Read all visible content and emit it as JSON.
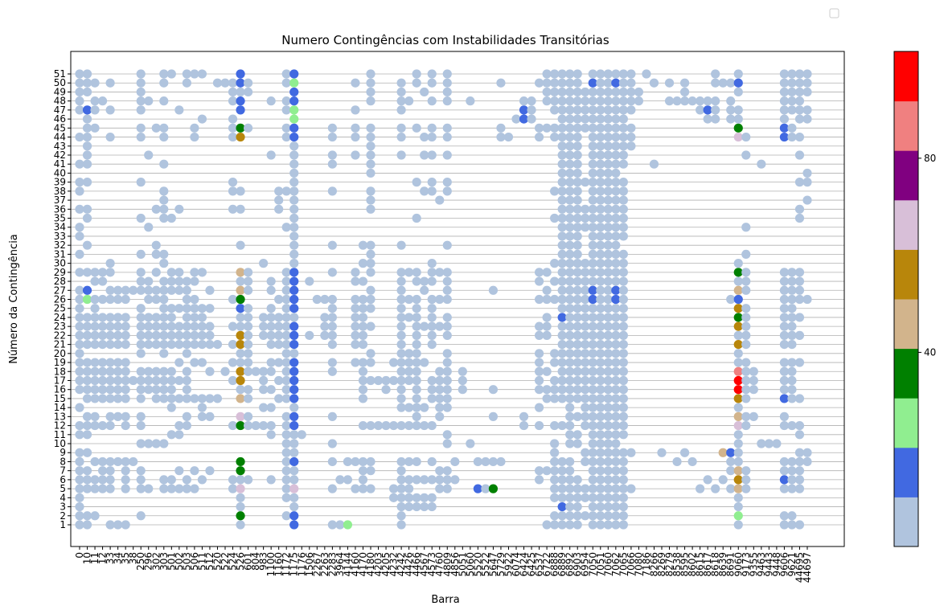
{
  "chart_data": {
    "type": "scatter",
    "title": "Numero Contingências com Instabilidades Transitórias",
    "xlabel": "Barra",
    "ylabel": "Número da Contingência",
    "x_tick_labels": [
      "0",
      "10",
      "11",
      "12",
      "33",
      "34",
      "35",
      "38",
      "250",
      "296",
      "302",
      "303",
      "501",
      "502",
      "503",
      "506",
      "511",
      "512",
      "520",
      "522",
      "524",
      "526",
      "601",
      "804",
      "983",
      "1100",
      "1160",
      "1172",
      "1175",
      "1176",
      "1506",
      "2267",
      "2263",
      "2283",
      "3964",
      "4144",
      "4160",
      "4170",
      "4180",
      "4203",
      "4205",
      "4232",
      "4242",
      "4426",
      "4466",
      "4567",
      "4573",
      "4760",
      "4809",
      "4856",
      "5051",
      "5060",
      "5520",
      "5522",
      "5647",
      "5729",
      "5922",
      "6074",
      "6424",
      "6425",
      "6537",
      "6722",
      "6888",
      "6889",
      "6892",
      "6903",
      "6954",
      "7050",
      "7051",
      "7060",
      "7062",
      "7065",
      "7066",
      "7080",
      "7186",
      "8266",
      "8269",
      "8279",
      "8538",
      "8595",
      "8602",
      "8615",
      "8617",
      "8618",
      "8639",
      "8691",
      "9060",
      "9173",
      "9355",
      "9463",
      "9443",
      "9448",
      "9606",
      "9621",
      "44695",
      "44697"
    ],
    "y_ticks": [
      1,
      2,
      3,
      4,
      5,
      6,
      7,
      8,
      9,
      10,
      11,
      12,
      13,
      14,
      15,
      16,
      17,
      18,
      19,
      20,
      21,
      22,
      23,
      24,
      25,
      26,
      27,
      28,
      29,
      30,
      31,
      32,
      33,
      34,
      35,
      36,
      37,
      38,
      39,
      40,
      41,
      42,
      43,
      44,
      45,
      46,
      47,
      48,
      49,
      50,
      51
    ],
    "colorbar": {
      "ticks": [
        40,
        80
      ],
      "colors": [
        "#b0c4de",
        "#4169e1",
        "#90ee90",
        "#008000",
        "#d2b48c",
        "#b8860b",
        "#d8bfd8",
        "#800080",
        "#f08080",
        "#ff0000"
      ]
    },
    "grid": "horizontal",
    "legend": "top-right (empty)",
    "default_point_color": "#b0c4de",
    "highlighted_points": [
      {
        "x": "10",
        "y": 47,
        "color": "#4169e1"
      },
      {
        "x": "10",
        "y": 27,
        "color": "#4169e1"
      },
      {
        "x": "10",
        "y": 26,
        "color": "#90ee90"
      },
      {
        "x": "526",
        "y": 51,
        "color": "#4169e1"
      },
      {
        "x": "526",
        "y": 50,
        "color": "#4169e1"
      },
      {
        "x": "526",
        "y": 48,
        "color": "#4169e1"
      },
      {
        "x": "526",
        "y": 47,
        "color": "#4169e1"
      },
      {
        "x": "526",
        "y": 45,
        "color": "#008000"
      },
      {
        "x": "526",
        "y": 44,
        "color": "#b8860b"
      },
      {
        "x": "526",
        "y": 29,
        "color": "#d2b48c"
      },
      {
        "x": "526",
        "y": 27,
        "color": "#d2b48c"
      },
      {
        "x": "526",
        "y": 26,
        "color": "#008000"
      },
      {
        "x": "526",
        "y": 25,
        "color": "#4169e1"
      },
      {
        "x": "526",
        "y": 22,
        "color": "#b8860b"
      },
      {
        "x": "526",
        "y": 21,
        "color": "#b8860b"
      },
      {
        "x": "526",
        "y": 18,
        "color": "#b8860b"
      },
      {
        "x": "526",
        "y": 17,
        "color": "#b8860b"
      },
      {
        "x": "526",
        "y": 15,
        "color": "#d2b48c"
      },
      {
        "x": "526",
        "y": 13,
        "color": "#d8bfd8"
      },
      {
        "x": "526",
        "y": 12,
        "color": "#008000"
      },
      {
        "x": "526",
        "y": 8,
        "color": "#008000"
      },
      {
        "x": "526",
        "y": 7,
        "color": "#008000"
      },
      {
        "x": "526",
        "y": 5,
        "color": "#d8bfd8"
      },
      {
        "x": "526",
        "y": 2,
        "color": "#008000"
      },
      {
        "x": "1175",
        "y": 51,
        "color": "#4169e1"
      },
      {
        "x": "1175",
        "y": 50,
        "color": "#90ee90"
      },
      {
        "x": "1175",
        "y": 49,
        "color": "#4169e1"
      },
      {
        "x": "1175",
        "y": 48,
        "color": "#4169e1"
      },
      {
        "x": "1175",
        "y": 47,
        "color": "#90ee90"
      },
      {
        "x": "1175",
        "y": 46,
        "color": "#90ee90"
      },
      {
        "x": "1175",
        "y": 45,
        "color": "#4169e1"
      },
      {
        "x": "1175",
        "y": 44,
        "color": "#4169e1"
      },
      {
        "x": "1175",
        "y": 29,
        "color": "#4169e1"
      },
      {
        "x": "1175",
        "y": 28,
        "color": "#4169e1"
      },
      {
        "x": "1175",
        "y": 27,
        "color": "#4169e1"
      },
      {
        "x": "1175",
        "y": 26,
        "color": "#4169e1"
      },
      {
        "x": "1175",
        "y": 25,
        "color": "#4169e1"
      },
      {
        "x": "1175",
        "y": 23,
        "color": "#4169e1"
      },
      {
        "x": "1175",
        "y": 22,
        "color": "#4169e1"
      },
      {
        "x": "1175",
        "y": 21,
        "color": "#4169e1"
      },
      {
        "x": "1175",
        "y": 19,
        "color": "#4169e1"
      },
      {
        "x": "1175",
        "y": 18,
        "color": "#4169e1"
      },
      {
        "x": "1175",
        "y": 17,
        "color": "#4169e1"
      },
      {
        "x": "1175",
        "y": 16,
        "color": "#4169e1"
      },
      {
        "x": "1175",
        "y": 15,
        "color": "#4169e1"
      },
      {
        "x": "1175",
        "y": 13,
        "color": "#4169e1"
      },
      {
        "x": "1175",
        "y": 12,
        "color": "#4169e1"
      },
      {
        "x": "1175",
        "y": 8,
        "color": "#4169e1"
      },
      {
        "x": "1175",
        "y": 5,
        "color": "#d8bfd8"
      },
      {
        "x": "1175",
        "y": 2,
        "color": "#4169e1"
      },
      {
        "x": "1175",
        "y": 1,
        "color": "#4169e1"
      },
      {
        "x": "4144",
        "y": 1,
        "color": "#90ee90"
      },
      {
        "x": "5520",
        "y": 5,
        "color": "#4169e1"
      },
      {
        "x": "5647",
        "y": 5,
        "color": "#008000"
      },
      {
        "x": "6424",
        "y": 47,
        "color": "#4169e1"
      },
      {
        "x": "6424",
        "y": 46,
        "color": "#4169e1"
      },
      {
        "x": "6889",
        "y": 24,
        "color": "#4169e1"
      },
      {
        "x": "6889",
        "y": 3,
        "color": "#4169e1"
      },
      {
        "x": "7050",
        "y": 50,
        "color": "#4169e1"
      },
      {
        "x": "7050",
        "y": 27,
        "color": "#4169e1"
      },
      {
        "x": "7050",
        "y": 26,
        "color": "#4169e1"
      },
      {
        "x": "7062",
        "y": 50,
        "color": "#4169e1"
      },
      {
        "x": "7062",
        "y": 27,
        "color": "#4169e1"
      },
      {
        "x": "7062",
        "y": 26,
        "color": "#4169e1"
      },
      {
        "x": "8617",
        "y": 47,
        "color": "#4169e1"
      },
      {
        "x": "8691",
        "y": 9,
        "color": "#4169e1"
      },
      {
        "x": "8639",
        "y": 9,
        "color": "#d2b48c"
      },
      {
        "x": "9060",
        "y": 50,
        "color": "#4169e1"
      },
      {
        "x": "9060",
        "y": 45,
        "color": "#008000"
      },
      {
        "x": "9060",
        "y": 44,
        "color": "#d8bfd8"
      },
      {
        "x": "9060",
        "y": 29,
        "color": "#008000"
      },
      {
        "x": "9060",
        "y": 27,
        "color": "#d2b48c"
      },
      {
        "x": "9060",
        "y": 26,
        "color": "#4169e1"
      },
      {
        "x": "9060",
        "y": 25,
        "color": "#b8860b"
      },
      {
        "x": "9060",
        "y": 24,
        "color": "#008000"
      },
      {
        "x": "9060",
        "y": 23,
        "color": "#b8860b"
      },
      {
        "x": "9060",
        "y": 21,
        "color": "#b8860b"
      },
      {
        "x": "9060",
        "y": 18,
        "color": "#f08080"
      },
      {
        "x": "9060",
        "y": 17,
        "color": "#ff0000"
      },
      {
        "x": "9060",
        "y": 16,
        "color": "#ff0000"
      },
      {
        "x": "9060",
        "y": 15,
        "color": "#b8860b"
      },
      {
        "x": "9060",
        "y": 13,
        "color": "#d2b48c"
      },
      {
        "x": "9060",
        "y": 12,
        "color": "#d8bfd8"
      },
      {
        "x": "9060",
        "y": 7,
        "color": "#d2b48c"
      },
      {
        "x": "9060",
        "y": 6,
        "color": "#b8860b"
      },
      {
        "x": "9060",
        "y": 5,
        "color": "#d2b48c"
      },
      {
        "x": "9060",
        "y": 2,
        "color": "#90ee90"
      },
      {
        "x": "9606",
        "y": 45,
        "color": "#4169e1"
      },
      {
        "x": "9606",
        "y": 44,
        "color": "#4169e1"
      },
      {
        "x": "9606",
        "y": 15,
        "color": "#4169e1"
      },
      {
        "x": "9606",
        "y": 6,
        "color": "#4169e1"
      }
    ],
    "point_columns": {
      "0": "1-9,11,12,14,16-27,29,31,33,34,36,38,39,41,44,47-51",
      "10": "1,2,5-7,9,11-13,15-19,21-24,26,27,29,32,35,36,39,41-47,49-51",
      "11": "2,5,6,8,12,13,15-19,21-26,28,29,45,47,48,50",
      "12": "5-8,12,15-19,21-24,26,28,29,48",
      "33": "1,5-8,12,13,15-19,21-24,26,27,29,30,44,47,50",
      "34": "1,8,13,15-19,21-24,26,27",
      "35": "1,5-8,12,13,15-19,21-24,26,27",
      "38": "8,17,27",
      "250": "2,5-7,10,12,13,15-18,20-25,27-29,31,35,39,44,45,47-51",
      "296": "5,10,16-18,21-24,26-28,34,42,48",
      "302": "10,15-18,21-24,26,27,29,31,32,36,45",
      "303": "5,6,10,15-18,20-28,30,31,35-38,41,44,45,48,50,51",
      "501": "5,6,11,14-18,21-25,27-29,35,51",
      "502": "5,7,11,12,15,17,19,21-23,25,27-29,36,47",
      "503": "5,6,12,13,15-18,20-28,50,51",
      "506": "5,7,15,19,21-26,28,29,44,45,51",
      "511": "6,13-15,19,21-25,29,46,51",
      "512": "7,13,15,18,21-23,25,27",
      "520": "15,21,50",
      "522": "18,50",
      "524": "5,6,12,17,19,21,23,26,36,38,39,44,45,46,48,49,50",
      "526": "1-8,12,13,15-29,32,36,38,44,45,47-51",
      "601": "6,12,13,15,16,18-25,27-29,45,49,50",
      "804": "12,18",
      "983": "12,14,16-18,22-24,30",
      "1100": "6,11,12,14,16,18,19,21-25,27,28,42,48",
      "1160": "15,17,19,21-24,26,36,37,38",
      "1172": "2,4-13,15-29,34,38,44,45,47,48,50,51",
      "1175": "1-51",
      "1176": "11",
      "1506": "22,28",
      "2267": "26",
      "2263": "22-24,26",
      "2283": "1,5,8,10,13,18,19,21-26,29,32,38,41,42,44,45",
      "3964": "1,6",
      "4144": "1,6,8",
      "4160": "5,8,19,21-24,24-26,28,29,42,44,45,47,50",
      "4170": "5-8,12,15-19,21-26,28,30,32",
      "4180": "5,7,8,12,17,19,20,23,25-27,29-32,36-38,40-45,48-51",
      "4203": "12,17",
      "4205": "12,16,17",
      "4232": "4,5,12,17,19",
      "4242": "1-8,12,14-29,32,42,44,45,47-50",
      "4426": "3,4,5,6,8,12,14,17-20,24,26,29,48",
      "4466": "3,4,6,8,12-26,28,29,35,39,45,50,51",
      "4567": "3,4,6,12,14,19,23,27,28,38,42,44,49",
      "4573": "3,4,6,8,12,15,16,17,21-26,28,29,30,38,39,42,44,45,48,50,51",
      "4760": "5,6,7,13,14,15,16,17,18,23,26,29,37",
      "4809": "5-7,10,11,14-20,22-24,26-29,32,38,39,42,44,45,48-51",
      "4856": "6,8",
      "5051": "16,17,18",
      "5060": "10,48",
      "5520": "5,8",
      "5522": "5,8",
      "5647": "5,8,13,16,27",
      "5729": "8,44,45,50",
      "5922": "44",
      "6074": "46",
      "6424": "12,13,46-48",
      "6425": "46-48",
      "6537": "6,7,12,14,16-20,22,23,26,28,29,44,45,50",
      "6722": "1,7,15,16,18,22-24,26,27,29,45,48-51",
      "6888": "1,2,4-10,12,15-17,19,20,26,28,30,35,38,44,45,47-51",
      "6889": "1-8,12,15-51",
      "6892": "1-8,10-51",
      "6903": "1-6,10,11,13,15-51",
      "6954": "2,4,5,8,9,12-30,34-36,39,45-49",
      "7050": "1-51",
      "7051": "1-51",
      "7060": "1-51",
      "7062": "1-51",
      "7065": "1-9,11-31,33-39,41-51",
      "7066": "5,9,43,44,45,47,48,49,50,51",
      "7080": "48,49",
      "7186": "51",
      "8266": "41,50",
      "8269": "9",
      "8279": "48,50",
      "8538": "8,48",
      "8595": "9,48,49,50",
      "8602": "8,48",
      "8615": "5,47,48",
      "8617": "6,46,47,48",
      "8618": "5,46,47,48,50,51",
      "8639": "6,9,50",
      "8691": "5,7,8,9,26,46,47,48,50",
      "9060": "1-30,44,45,46,47,49,50,51",
      "9173": "5,6,7,12,13,15,16,17,18,19,21,22,23,24,25,27,28,29,31,34,42,44",
      "9355": "13,16,17,18",
      "9463": "10,41",
      "9443": "10",
      "9448": "10",
      "9606": "1,2,5-8,12,13,15-19,21-29,44-51",
      "9621": "1,2,5-8,12,15-19,21-29,44,45,47-51",
      "44695": "1,5-9,11,12,15,19,22,24,26,27,28,29,35,36,39,42,44,46-51",
      "44697": "8,9,26,37,39,40,46,47,49,50,51"
    }
  }
}
